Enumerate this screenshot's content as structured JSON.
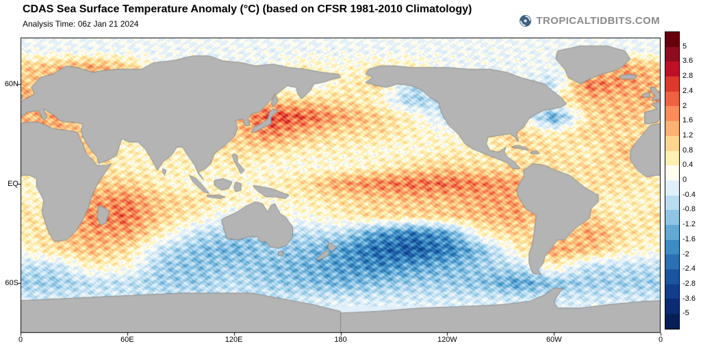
{
  "header": {
    "title": "CDAS Sea Surface Temperature Anomaly (°C) (based on CFSR 1981-2010 Climatology)",
    "analysis_time": "Analysis Time: 06z Jan 21 2024",
    "brand": "TROPICALTIDBITS.COM",
    "brand_icon": "hurricane-swirl-icon"
  },
  "axes": {
    "lat_labels": [
      {
        "text": "60N",
        "lat": 60
      },
      {
        "text": "EQ",
        "lat": 0
      },
      {
        "text": "60S",
        "lat": -60
      }
    ],
    "lon_labels": [
      {
        "text": "0",
        "lon": 0
      },
      {
        "text": "60E",
        "lon": 60
      },
      {
        "text": "120E",
        "lon": 120
      },
      {
        "text": "180",
        "lon": 180
      },
      {
        "text": "120W",
        "lon": 240
      },
      {
        "text": "60W",
        "lon": 300
      },
      {
        "text": "0",
        "lon": 360
      }
    ]
  },
  "colorbar": {
    "labels": [
      "5",
      "3.6",
      "2.8",
      "2.4",
      "2",
      "1.6",
      "1.2",
      "0.8",
      "0.4",
      "0",
      "-0.4",
      "-0.8",
      "-1.2",
      "-1.6",
      "-2",
      "-2.4",
      "-2.8",
      "-3.6",
      "-5"
    ]
  },
  "chart_data": {
    "type": "heatmap",
    "title": "CDAS Sea Surface Temperature Anomaly (°C) (based on CFSR 1981-2010 Climatology)",
    "analysis_time": "06z Jan 21 2024",
    "units": "°C",
    "land_color": "#b4b4b4",
    "levels": [
      5,
      3.6,
      2.8,
      2.4,
      2,
      1.6,
      1.2,
      0.8,
      0.4,
      0,
      -0.4,
      -0.8,
      -1.2,
      -1.6,
      -2,
      -2.4,
      -2.8,
      -3.6,
      -5
    ],
    "level_colors": [
      "#67000D",
      "#8E0C20",
      "#BE1127",
      "#DC3A2C",
      "#EF6143",
      "#F98C59",
      "#FDB172",
      "#FED48E",
      "#FFF0B2",
      "#FFFDF0",
      "#E0EFF9",
      "#B9DCF0",
      "#8FC4E4",
      "#62A9D4",
      "#3D8DC4",
      "#2A70B2",
      "#1B559F",
      "#123E8C",
      "#0B2B74",
      "#071F55"
    ],
    "lon_deg_east": [
      0,
      20,
      40,
      60,
      80,
      100,
      120,
      140,
      160,
      180,
      200,
      220,
      240,
      260,
      280,
      300,
      320,
      340,
      360
    ],
    "lat_deg": [
      80,
      70,
      60,
      50,
      40,
      30,
      20,
      10,
      0,
      -10,
      -20,
      -30,
      -40,
      -50,
      -60,
      -70,
      -80
    ],
    "anomaly_grid": [
      [
        0,
        0,
        0,
        0,
        0,
        0,
        0,
        0,
        0,
        0,
        0,
        0,
        0,
        0,
        0,
        0,
        0,
        0,
        0
      ],
      [
        1,
        1.2,
        1.5,
        1,
        0,
        0,
        0,
        0,
        0.5,
        0.3,
        0.5,
        0.5,
        0,
        0,
        0,
        0,
        0.5,
        1.5,
        1
      ],
      [
        1.2,
        1,
        0.8,
        0.5,
        0.3,
        0.3,
        0.3,
        0.3,
        -0.3,
        0.5,
        0.8,
        -0.5,
        0,
        0,
        0,
        -0.5,
        2,
        1.6,
        1.2
      ],
      [
        1.5,
        1,
        0.8,
        0.5,
        0.5,
        0.5,
        0.5,
        1,
        1,
        0.8,
        0.5,
        -0.8,
        -0.5,
        0,
        0,
        0.5,
        1.2,
        1.2,
        1.5
      ],
      [
        1.2,
        1.5,
        1,
        0.5,
        0.5,
        0.5,
        0.8,
        2.5,
        2.2,
        1.5,
        1,
        0.5,
        -0.5,
        0,
        0.5,
        -1.5,
        0.8,
        1.2,
        0.8
      ],
      [
        1,
        1.3,
        0.8,
        0.5,
        0.5,
        0.5,
        1,
        1.8,
        1.2,
        0.8,
        0.8,
        0.5,
        0.3,
        0.5,
        1,
        0.5,
        1,
        0.8,
        0.8
      ],
      [
        0.8,
        0.5,
        1,
        0.5,
        0.5,
        0.5,
        0.8,
        0.8,
        0.5,
        0.5,
        0.3,
        0.3,
        0.5,
        0.5,
        0.8,
        0.8,
        0.5,
        1.2,
        1
      ],
      [
        0.5,
        0.3,
        0.8,
        0.5,
        0.5,
        0.5,
        0.5,
        0.3,
        0.3,
        0.3,
        0.5,
        0.8,
        1,
        0.8,
        0.8,
        0.8,
        0.8,
        0.8,
        0.5
      ],
      [
        0.5,
        0.3,
        1,
        1,
        0.5,
        0.3,
        0.3,
        0.5,
        0.8,
        1.5,
        1.8,
        2,
        2,
        1.8,
        1.5,
        0.3,
        0.8,
        0.8,
        0.5
      ],
      [
        0.5,
        0.3,
        1.5,
        1.8,
        1,
        0.8,
        0.5,
        0.3,
        0.5,
        0.8,
        1,
        1.2,
        1.2,
        1.5,
        1.5,
        0.3,
        0.5,
        0.5,
        0.5
      ],
      [
        0.8,
        0.5,
        1.8,
        2,
        1,
        0.5,
        -0.3,
        0.2,
        0.2,
        0.5,
        0.8,
        0.8,
        1,
        1.2,
        1.5,
        0.5,
        1,
        0.5,
        0.8
      ],
      [
        0.5,
        1,
        1.5,
        1.5,
        0.5,
        -0.5,
        -0.8,
        -1,
        -0.5,
        -0.5,
        -1.5,
        -2,
        -1.5,
        0.5,
        1,
        0.5,
        1.5,
        0.8,
        0.5
      ],
      [
        0.3,
        0.8,
        1.2,
        0.8,
        -0.5,
        -1,
        -1.2,
        -0.8,
        -1,
        -1.5,
        -2.2,
        -2.5,
        -2,
        -1,
        0.5,
        1.5,
        1.2,
        0.5,
        0.3
      ],
      [
        -0.5,
        -0.5,
        0.5,
        0.3,
        -0.8,
        -1,
        -0.8,
        -1,
        -1.2,
        -1.5,
        -1.8,
        -1.5,
        -1.2,
        -0.8,
        -0.5,
        0.5,
        -0.5,
        -0.5,
        -0.5
      ],
      [
        -0.8,
        -0.8,
        -0.5,
        -0.5,
        -0.8,
        -0.8,
        -0.5,
        -0.8,
        -1,
        -1.2,
        -1,
        -0.8,
        -0.8,
        -1,
        -1.5,
        -1,
        -0.8,
        -0.8,
        -0.8
      ],
      [
        -0.3,
        -0.3,
        -0.3,
        -0.3,
        -0.3,
        -0.3,
        -0.3,
        -0.3,
        -0.3,
        -0.3,
        -0.3,
        -0.3,
        -0.3,
        -0.3,
        -0.3,
        -0.3,
        -0.3,
        -0.3,
        -0.3
      ],
      [
        0,
        0,
        0,
        0,
        0,
        0,
        0,
        0,
        0,
        0,
        0,
        0,
        0,
        0,
        0,
        0,
        0,
        0,
        0
      ]
    ]
  }
}
